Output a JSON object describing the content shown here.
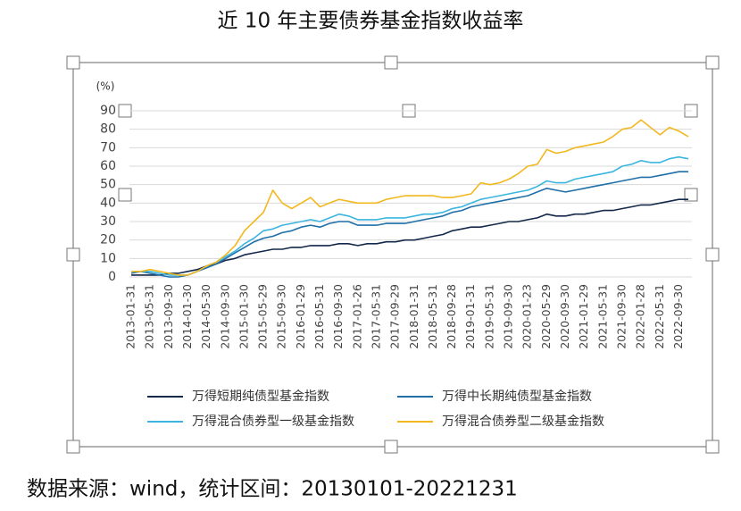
{
  "chart_data": {
    "type": "line",
    "title": "近 10 年主要债券基金指数收益率",
    "unit_label": "(%)",
    "categories": [
      "2013-01-31",
      null,
      "2013-05-31",
      null,
      "2013-09-30",
      null,
      "2014-01-30",
      null,
      "2014-05-30",
      null,
      "2014-09-30",
      null,
      "2015-01-30",
      null,
      "2015-05-29",
      null,
      "2015-09-30",
      null,
      "2016-01-29",
      null,
      "2016-05-31",
      null,
      "2016-09-30",
      null,
      "2017-01-26",
      null,
      "2017-05-31",
      null,
      "2017-09-29",
      null,
      "2018-01-31",
      null,
      "2018-05-31",
      null,
      "2018-09-28",
      null,
      "2019-01-31",
      null,
      "2019-05-31",
      null,
      "2019-09-30",
      null,
      "2020-01-23",
      null,
      "2020-05-29",
      null,
      "2020-09-30",
      null,
      "2021-01-29",
      null,
      "2021-05-31",
      null,
      "2021-09-30",
      null,
      "2022-01-28",
      null,
      "2022-05-31",
      null,
      "2022-09-30",
      null
    ],
    "series": [
      {
        "name": "万得短期纯债型基金指数",
        "color": "#14284a",
        "values": [
          1,
          1,
          1,
          1,
          2,
          2,
          3,
          4,
          6,
          7,
          9,
          10,
          12,
          13,
          14,
          15,
          15,
          16,
          16,
          17,
          17,
          17,
          18,
          18,
          17,
          18,
          18,
          19,
          19,
          20,
          20,
          21,
          22,
          23,
          25,
          26,
          27,
          27,
          28,
          29,
          30,
          30,
          31,
          32,
          34,
          33,
          33,
          34,
          34,
          35,
          36,
          36,
          37,
          38,
          39,
          39,
          40,
          41,
          42,
          42
        ]
      },
      {
        "name": "万得中长期纯债型基金指数",
        "color": "#1f6fa8",
        "values": [
          2,
          3,
          2,
          1,
          0,
          0,
          1,
          3,
          5,
          7,
          10,
          13,
          16,
          19,
          21,
          22,
          24,
          25,
          27,
          28,
          27,
          29,
          30,
          30,
          28,
          28,
          28,
          29,
          29,
          29,
          30,
          31,
          32,
          33,
          35,
          36,
          38,
          39,
          40,
          41,
          42,
          43,
          44,
          46,
          48,
          47,
          46,
          47,
          48,
          49,
          50,
          51,
          52,
          53,
          54,
          54,
          55,
          56,
          57,
          57
        ]
      },
      {
        "name": "万得混合债券型一级基金指数",
        "color": "#3bb5e0",
        "values": [
          3,
          3,
          3,
          2,
          1,
          1,
          1,
          3,
          6,
          8,
          11,
          14,
          18,
          21,
          25,
          26,
          28,
          29,
          30,
          31,
          30,
          32,
          34,
          33,
          31,
          31,
          31,
          32,
          32,
          32,
          33,
          34,
          34,
          35,
          37,
          38,
          40,
          42,
          43,
          44,
          45,
          46,
          47,
          49,
          52,
          51,
          51,
          53,
          54,
          55,
          56,
          57,
          60,
          61,
          63,
          62,
          62,
          64,
          65,
          64
        ]
      },
      {
        "name": "万得混合债券型二级基金指数",
        "color": "#f2b81f",
        "values": [
          3,
          3,
          4,
          3,
          2,
          1,
          1,
          3,
          6,
          8,
          12,
          17,
          25,
          30,
          35,
          47,
          40,
          37,
          40,
          43,
          38,
          40,
          42,
          41,
          40,
          40,
          40,
          42,
          43,
          44,
          44,
          44,
          44,
          43,
          43,
          44,
          45,
          51,
          50,
          51,
          53,
          56,
          60,
          61,
          69,
          67,
          68,
          70,
          71,
          72,
          73,
          76,
          80,
          81,
          85,
          81,
          77,
          81,
          79,
          76
        ]
      }
    ],
    "ylim": [
      0,
      90
    ],
    "yticks": [
      0,
      10,
      20,
      30,
      40,
      50,
      60,
      70,
      80,
      90
    ],
    "grid": true
  },
  "footer": "数据来源：wind，统计区间：20130101-20221231"
}
